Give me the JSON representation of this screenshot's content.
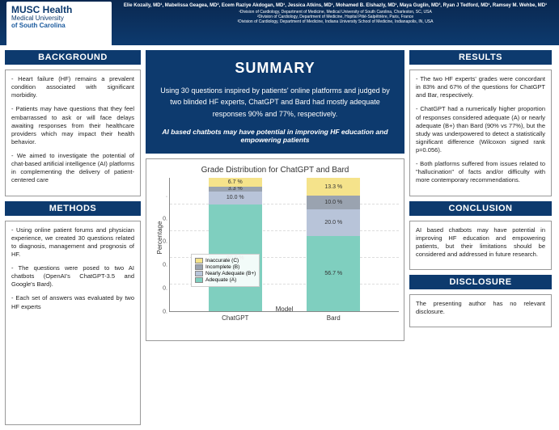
{
  "header": {
    "logo": {
      "line1": "MUSC Health",
      "line2": "Medical University",
      "line3": "of South Carolina"
    },
    "authors": "Elie Kozaily, MD¹, Mabelissa Geagea, MD², Ecem Raziye Akdogan, MD¹, Jessica Atkins, MD¹, Mohamed B. Elshazly, MD¹, Maya Guglin, MD³, Ryan J Tedford, MD¹, Ramsey M. Wehbe, MD¹",
    "affil": "¹Division of Cardiology, Department of Medicine, Medical University of South Carolina, Charleston, SC, USA\n²Division of Cardiology, Department of Medicine, Hopital Pitié-Salpêtrière, Paris, France\n³Division of Cardiology, Department of Medicine, Indiana University School of Medicine, Indianapolis, IN, USA"
  },
  "background": {
    "title": "BACKGROUND",
    "p1": "- Heart failure (HF) remains a prevalent condition associated with significant morbidity.",
    "p2": "- Patients may have questions that they feel embarrassed to ask or will face delays awaiting responses from their healthcare providers which may impact their health behavior.",
    "p3": "- We aimed to investigate the potential of chat-based artificial intelligence (AI) platforms in complementing the delivery of patient-centered care"
  },
  "methods": {
    "title": "METHODS",
    "p1": "- Using online patient forums and physician experience, we created 30 questions related to diagnosis, management and prognosis of HF.",
    "p2": "- The questions were posed to two AI chatbots (OpenAI's ChatGPT-3.5 and Google's Bard).",
    "p3": "- Each set of answers was evaluated by two HF experts"
  },
  "summary": {
    "title": "SUMMARY",
    "text": "Using 30 questions inspired by patients' online platforms and judged by two blinded HF experts, ChatGPT and Bard had mostly adequate responses 90% and 77%, respectively.",
    "em": "AI based chatbots may have potential in improving HF education and empowering patients"
  },
  "chart": {
    "title": "Grade Distribution for ChatGPT and Bard",
    "ylabel": "Percentage",
    "xlabel": "Model",
    "y_ticks": [
      "0.",
      "0.",
      "0.",
      "0.",
      "0.",
      "."
    ],
    "categories": [
      "ChatGPT",
      "Bard"
    ],
    "series": [
      {
        "name": "Adequate (A)",
        "color": "#7fcfbf",
        "vals": [
          80.0,
          56.7
        ],
        "labels": [
          "80.0 %",
          "56.7 %"
        ]
      },
      {
        "name": "Nearly Adequate (B+)",
        "color": "#b8c4d9",
        "vals": [
          10.0,
          20.0
        ],
        "labels": [
          "10.0 %",
          "20.0 %"
        ]
      },
      {
        "name": "Incomplete (B)",
        "color": "#9aa3b0",
        "vals": [
          3.3,
          10.0
        ],
        "labels": [
          "3.3 %",
          "10.0 %"
        ]
      },
      {
        "name": "Inaccurate (C)",
        "color": "#f5e38b",
        "vals": [
          6.7,
          13.3
        ],
        "labels": [
          "6.7 %",
          "13.3 %"
        ]
      }
    ]
  },
  "results": {
    "title": "RESULTS",
    "p1": "- The two HF experts' grades were concordant in 83% and 67% of the questions for ChatGPT and Bar, respectively.",
    "p2": "- ChatGPT had a numerically higher proportion of responses considered adequate (A) or nearly adequate (B+) than Bard (90% vs 77%), but the study was underpowered to detect a statistically significant difference (Wilcoxon signed rank p=0.056).",
    "p3": "- Both platforms suffered from issues related to \"hallucination\" of facts and/or difficulty with more contemporary recommendations."
  },
  "conclusion": {
    "title": "CONCLUSION",
    "p1": "AI based chatbots may have potential in improving HF education and empowering patients, but their limitations should be considered and addressed in future research."
  },
  "disclosure": {
    "title": "DISCLOSURE",
    "p1": "The presenting author has no relevant disclosure."
  }
}
